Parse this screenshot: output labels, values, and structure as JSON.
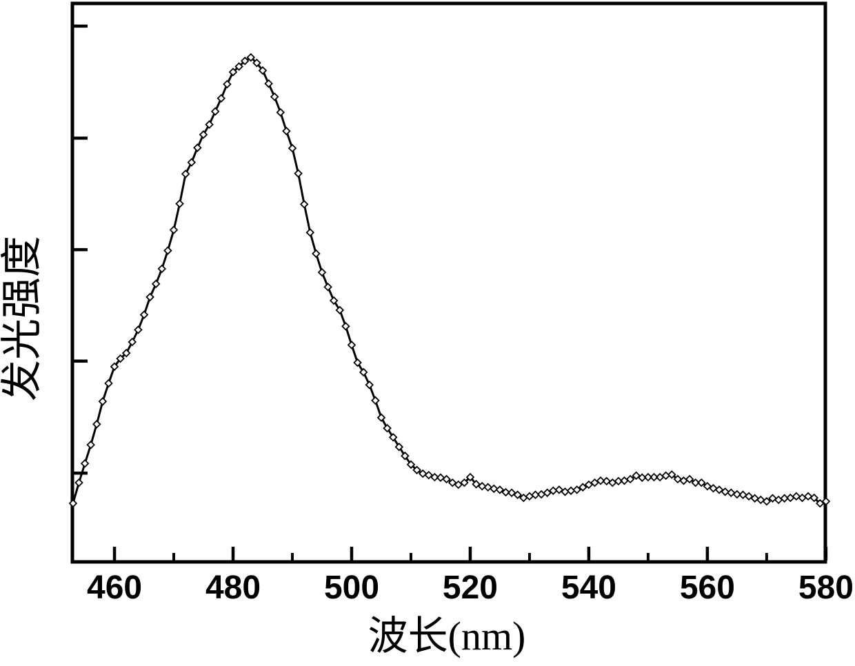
{
  "figure": {
    "background_color": "#ffffff",
    "ink_color": "#000000"
  },
  "chart_data": {
    "type": "line",
    "title": "",
    "xlabel": "波长(nm)",
    "ylabel": "发光强度",
    "x_unit": "nm",
    "xlim": [
      452.9,
      579.9
    ],
    "ylim": [
      0,
      1.107
    ],
    "x_major_ticks": [
      460,
      480,
      500,
      520,
      540,
      560,
      580
    ],
    "x_minor_ticks": [
      470,
      490,
      510,
      530,
      550,
      570
    ],
    "y_major_ticks": [
      0.176,
      0.398,
      0.619,
      0.84,
      1.062
    ],
    "y_tick_labels_visible": false,
    "grid": false,
    "legend_position": "none",
    "marker": "open-diamond",
    "line_color": "#000000",
    "peak": {
      "wavelength_nm": 483,
      "intensity": 1.0
    },
    "secondary_bump": {
      "wavelength_nm": 553,
      "intensity": 0.17
    },
    "series": [
      {
        "name": "emission-spectrum",
        "points": [
          [
            453,
            0.116
          ],
          [
            454,
            0.157
          ],
          [
            455,
            0.195
          ],
          [
            456,
            0.232
          ],
          [
            457,
            0.273
          ],
          [
            458,
            0.318
          ],
          [
            459,
            0.354
          ],
          [
            460,
            0.387
          ],
          [
            461,
            0.403
          ],
          [
            462,
            0.414
          ],
          [
            463,
            0.436
          ],
          [
            464,
            0.46
          ],
          [
            465,
            0.49
          ],
          [
            466,
            0.525
          ],
          [
            467,
            0.551
          ],
          [
            468,
            0.581
          ],
          [
            469,
            0.617
          ],
          [
            470,
            0.658
          ],
          [
            471,
            0.71
          ],
          [
            472,
            0.769
          ],
          [
            473,
            0.792
          ],
          [
            474,
            0.821
          ],
          [
            475,
            0.847
          ],
          [
            476,
            0.867
          ],
          [
            477,
            0.893
          ],
          [
            478,
            0.919
          ],
          [
            479,
            0.947
          ],
          [
            480,
            0.971
          ],
          [
            481,
            0.982
          ],
          [
            482,
            0.993
          ],
          [
            483,
            1.0
          ],
          [
            484,
            0.989
          ],
          [
            485,
            0.974
          ],
          [
            486,
            0.948
          ],
          [
            487,
            0.922
          ],
          [
            488,
            0.891
          ],
          [
            489,
            0.854
          ],
          [
            490,
            0.82
          ],
          [
            491,
            0.77
          ],
          [
            492,
            0.709
          ],
          [
            493,
            0.653
          ],
          [
            494,
            0.611
          ],
          [
            495,
            0.574
          ],
          [
            496,
            0.545
          ],
          [
            497,
            0.518
          ],
          [
            498,
            0.499
          ],
          [
            499,
            0.467
          ],
          [
            500,
            0.43
          ],
          [
            501,
            0.395
          ],
          [
            502,
            0.376
          ],
          [
            503,
            0.351
          ],
          [
            504,
            0.32
          ],
          [
            505,
            0.286
          ],
          [
            506,
            0.265
          ],
          [
            507,
            0.247
          ],
          [
            508,
            0.228
          ],
          [
            509,
            0.21
          ],
          [
            510,
            0.193
          ],
          [
            511,
            0.182
          ],
          [
            512,
            0.175
          ],
          [
            513,
            0.172
          ],
          [
            514,
            0.168
          ],
          [
            515,
            0.167
          ],
          [
            516,
            0.164
          ],
          [
            517,
            0.157
          ],
          [
            518,
            0.153
          ],
          [
            519,
            0.157
          ],
          [
            520,
            0.168
          ],
          [
            521,
            0.154
          ],
          [
            522,
            0.15
          ],
          [
            523,
            0.148
          ],
          [
            524,
            0.145
          ],
          [
            525,
            0.143
          ],
          [
            526,
            0.138
          ],
          [
            527,
            0.137
          ],
          [
            528,
            0.133
          ],
          [
            529,
            0.127
          ],
          [
            530,
            0.13
          ],
          [
            531,
            0.133
          ],
          [
            532,
            0.134
          ],
          [
            533,
            0.137
          ],
          [
            534,
            0.141
          ],
          [
            535,
            0.143
          ],
          [
            536,
            0.139
          ],
          [
            537,
            0.141
          ],
          [
            538,
            0.143
          ],
          [
            539,
            0.148
          ],
          [
            540,
            0.153
          ],
          [
            541,
            0.157
          ],
          [
            542,
            0.161
          ],
          [
            543,
            0.16
          ],
          [
            544,
            0.157
          ],
          [
            545,
            0.16
          ],
          [
            546,
            0.161
          ],
          [
            547,
            0.164
          ],
          [
            548,
            0.171
          ],
          [
            549,
            0.167
          ],
          [
            550,
            0.168
          ],
          [
            551,
            0.168
          ],
          [
            552,
            0.168
          ],
          [
            553,
            0.171
          ],
          [
            554,
            0.173
          ],
          [
            555,
            0.164
          ],
          [
            556,
            0.161
          ],
          [
            557,
            0.164
          ],
          [
            558,
            0.157
          ],
          [
            559,
            0.157
          ],
          [
            560,
            0.15
          ],
          [
            561,
            0.146
          ],
          [
            562,
            0.143
          ],
          [
            563,
            0.139
          ],
          [
            564,
            0.137
          ],
          [
            565,
            0.134
          ],
          [
            566,
            0.133
          ],
          [
            567,
            0.13
          ],
          [
            568,
            0.126
          ],
          [
            569,
            0.123
          ],
          [
            570,
            0.12
          ],
          [
            571,
            0.126
          ],
          [
            572,
            0.123
          ],
          [
            573,
            0.126
          ],
          [
            574,
            0.127
          ],
          [
            575,
            0.13
          ],
          [
            576,
            0.127
          ],
          [
            577,
            0.13
          ],
          [
            578,
            0.127
          ],
          [
            579,
            0.116
          ],
          [
            580,
            0.12
          ]
        ]
      }
    ]
  }
}
